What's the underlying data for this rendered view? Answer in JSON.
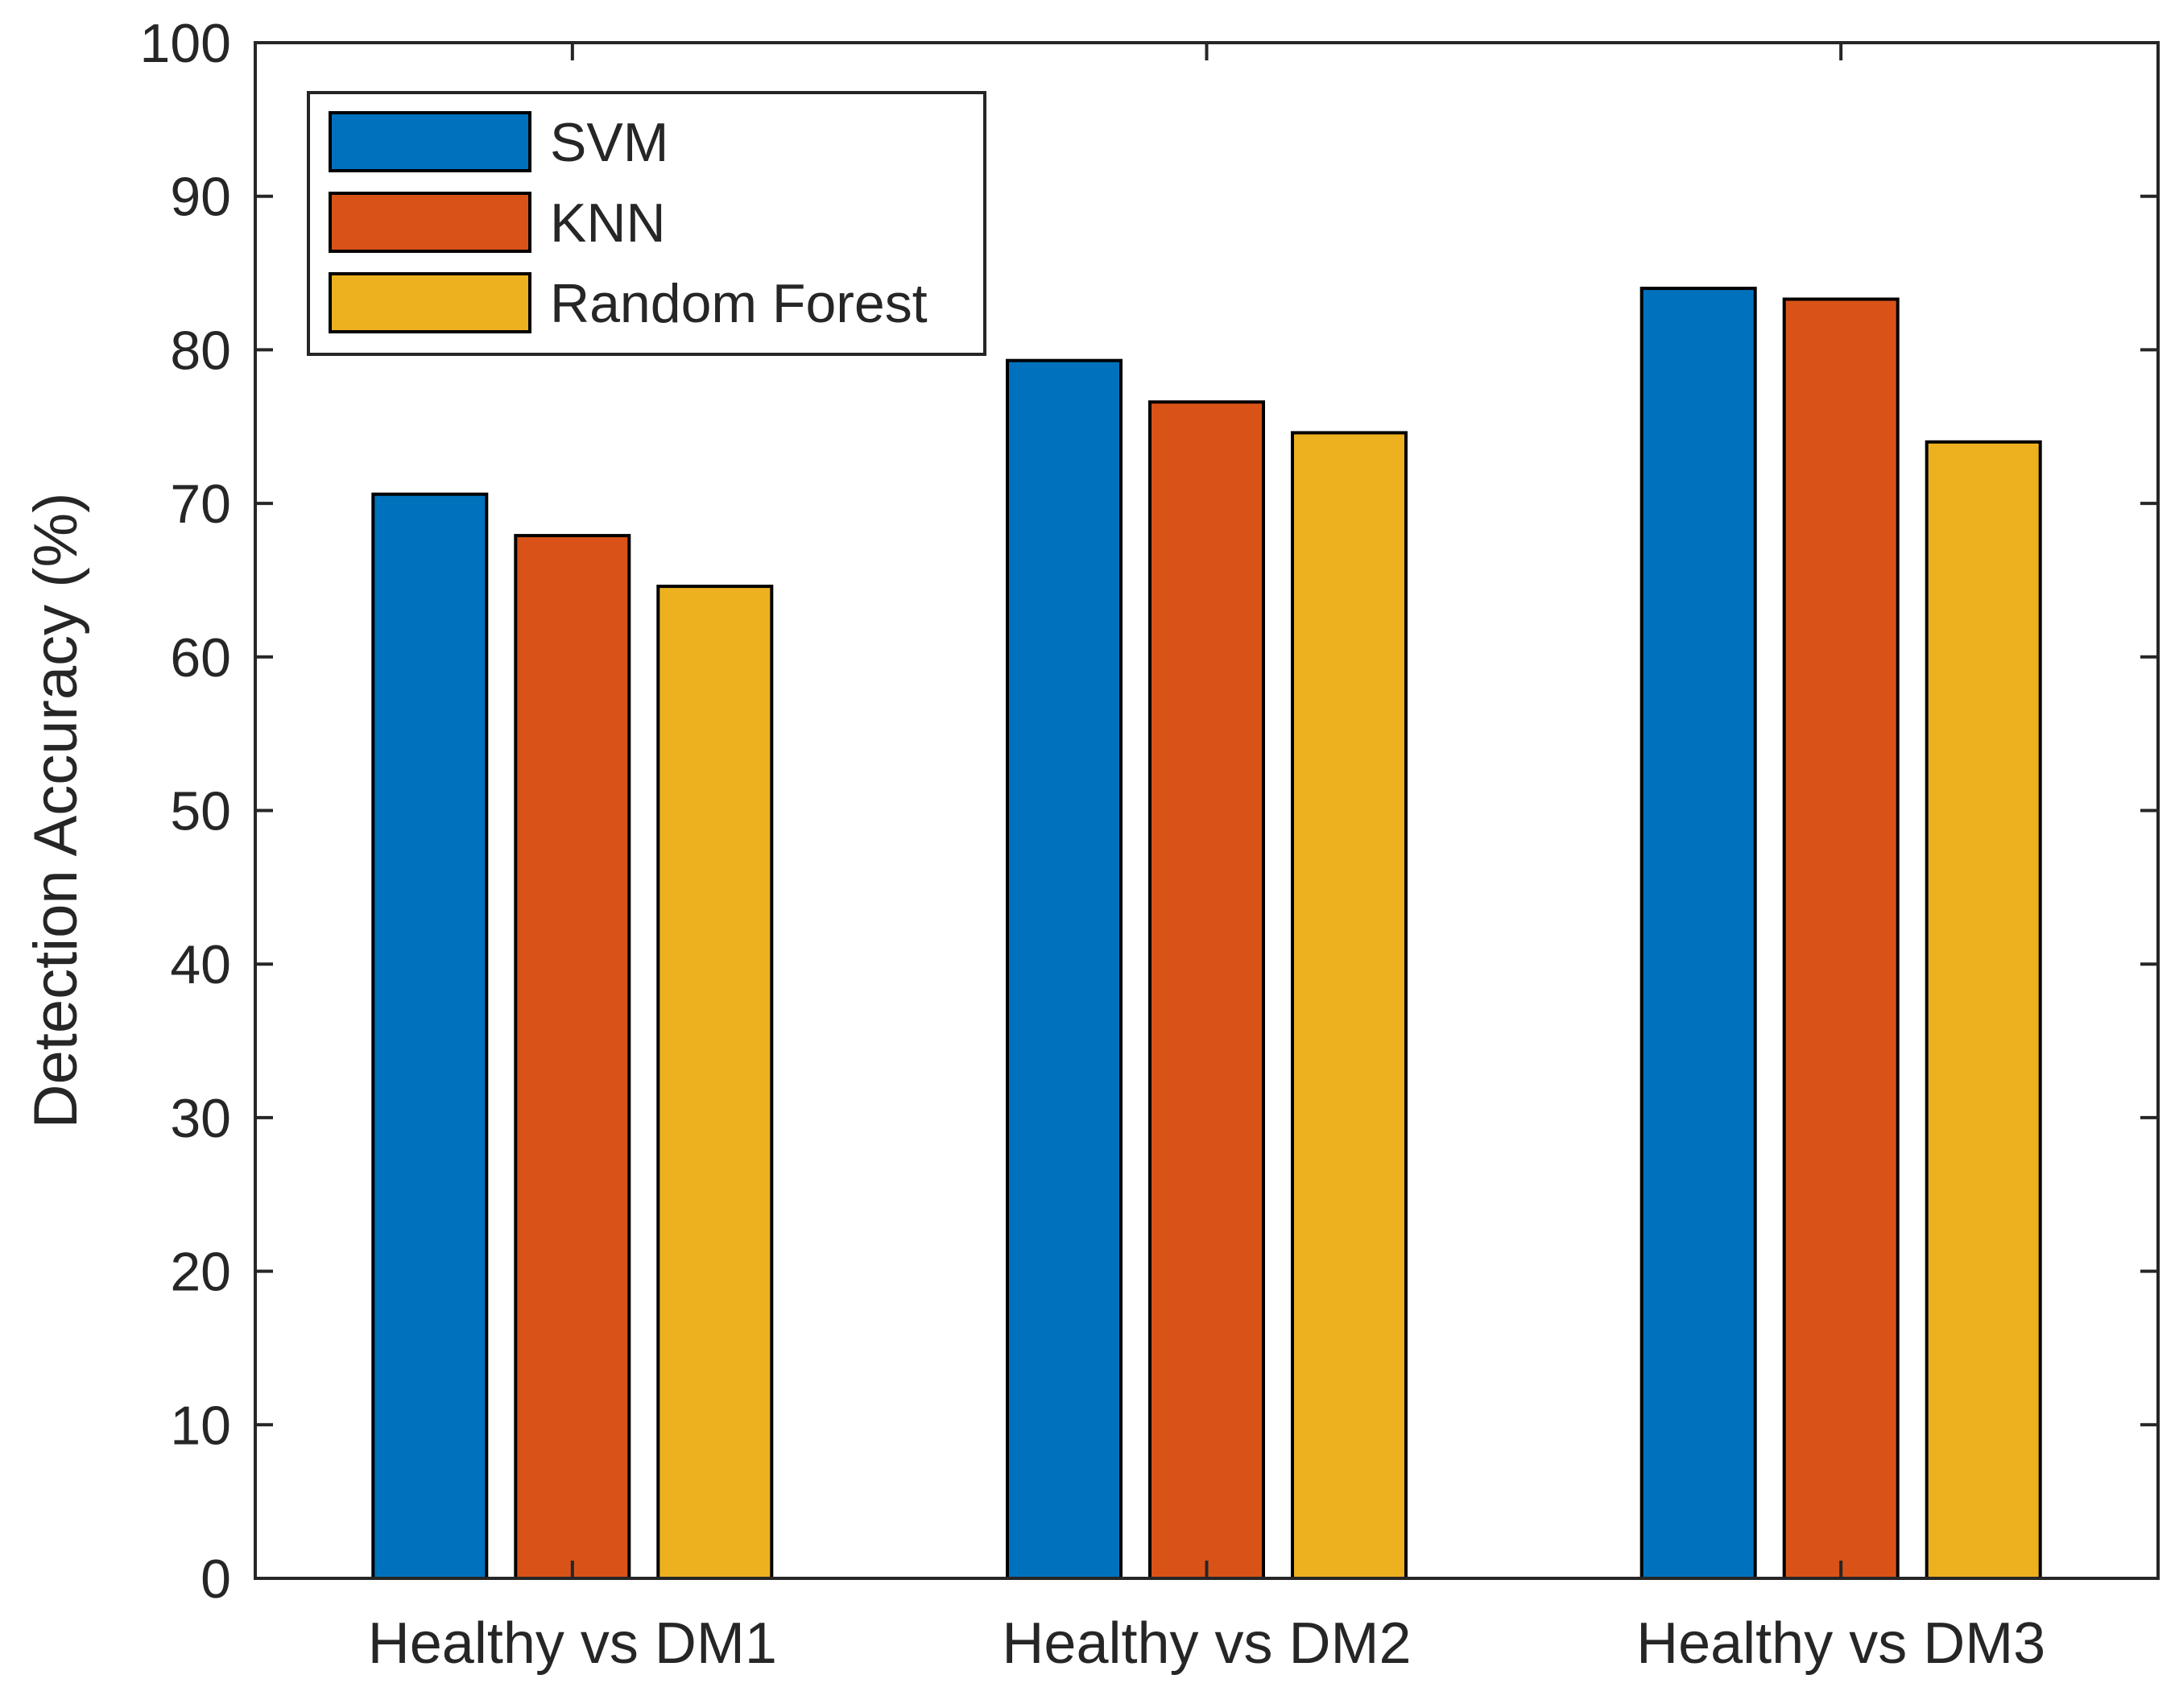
{
  "chart_data": {
    "type": "bar",
    "title": "",
    "xlabel": "",
    "ylabel": "Detection Accuracy (%)",
    "categories": [
      "Healthy vs DM1",
      "Healthy vs DM2",
      "Healthy vs DM3"
    ],
    "series": [
      {
        "name": "SVM",
        "color": "#0072BD",
        "values": [
          70.6,
          79.3,
          84.0
        ]
      },
      {
        "name": "KNN",
        "color": "#D95319",
        "values": [
          67.9,
          76.6,
          83.3
        ]
      },
      {
        "name": "Random Forest",
        "color": "#EDB120",
        "values": [
          64.6,
          74.6,
          74.0
        ]
      }
    ],
    "ylim": [
      0,
      100
    ],
    "yticks": [
      0,
      10,
      20,
      30,
      40,
      50,
      60,
      70,
      80,
      90,
      100
    ],
    "ytick_labels": [
      "0",
      "10",
      "20",
      "30",
      "40",
      "50",
      "60",
      "70",
      "80",
      "90",
      "100"
    ],
    "grid": false,
    "legend_position": "top-left"
  }
}
